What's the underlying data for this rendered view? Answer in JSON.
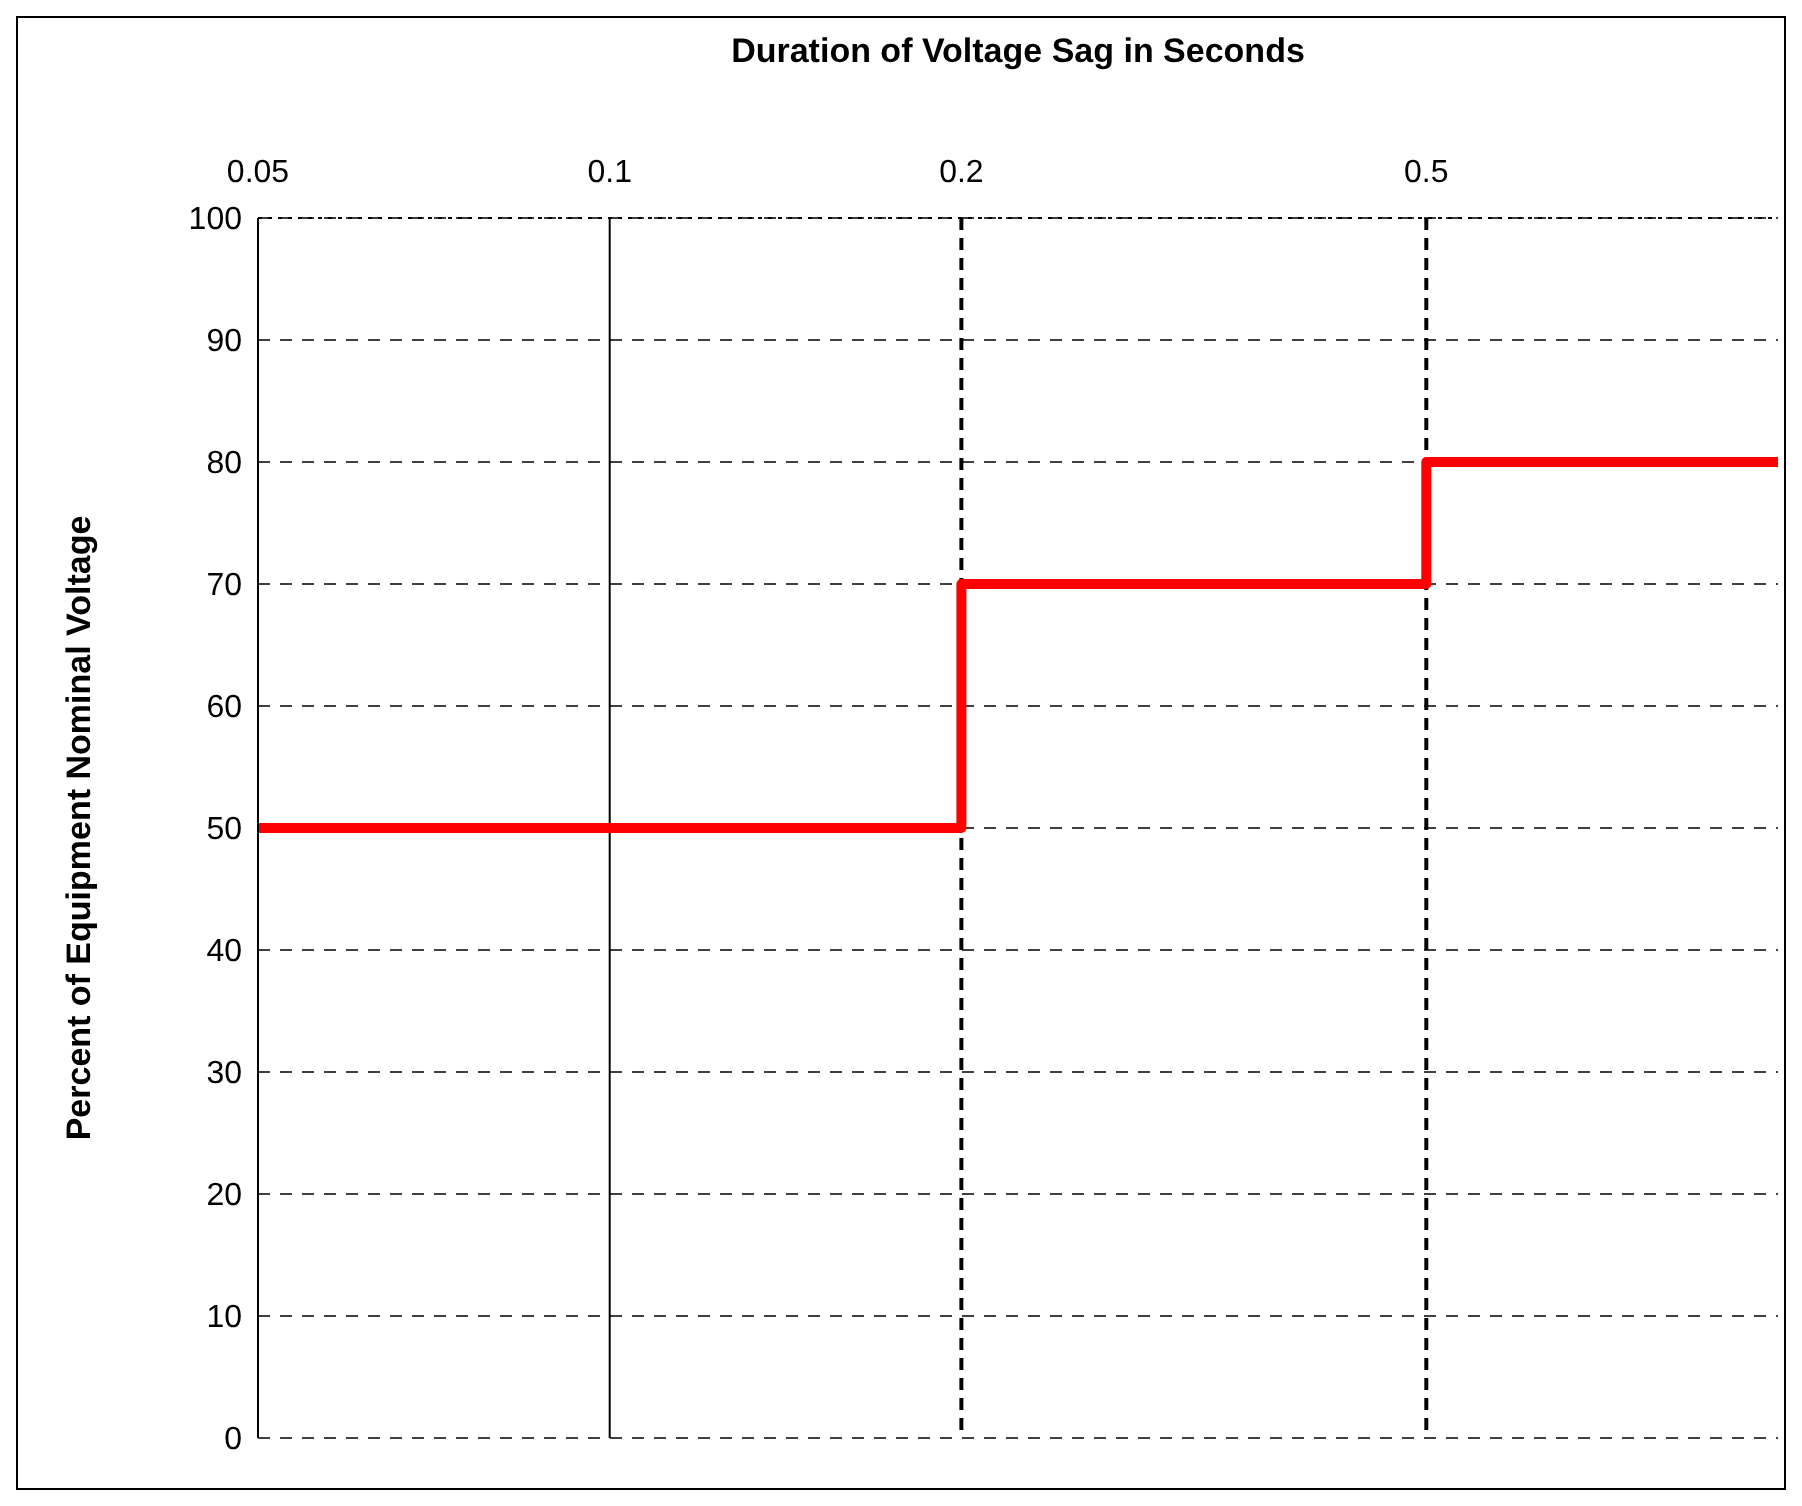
{
  "chart_data": {
    "type": "step",
    "xlabel": "Duration of Voltage Sag in Seconds",
    "ylabel": "Percent of Equipment Nominal Voltage",
    "x": [
      0.05,
      0.2,
      0.5,
      1
    ],
    "series": [
      {
        "color": "#ff0000",
        "values": [
          50,
          70,
          80,
          80
        ]
      }
    ],
    "log": "x",
    "xlim": [
      0.05,
      1
    ],
    "xticks": [
      0.05,
      0.1,
      0.2,
      0.5
    ],
    "ylim": [
      0,
      100
    ],
    "yticks": [
      0,
      10,
      20,
      30,
      40,
      50,
      60,
      70,
      80,
      90,
      100
    ],
    "grid": "y",
    "marker": "none",
    "line_style": "solid",
    "ref_lines": [
      {
        "axis": "x",
        "value": 0.1,
        "color": "#000000",
        "line_style": "solid"
      },
      {
        "axis": "x",
        "value": 0.2,
        "color": "#000000",
        "line_style": "dashed"
      },
      {
        "axis": "x",
        "value": 0.5,
        "color": "#000000",
        "line_style": "dashed"
      }
    ]
  }
}
